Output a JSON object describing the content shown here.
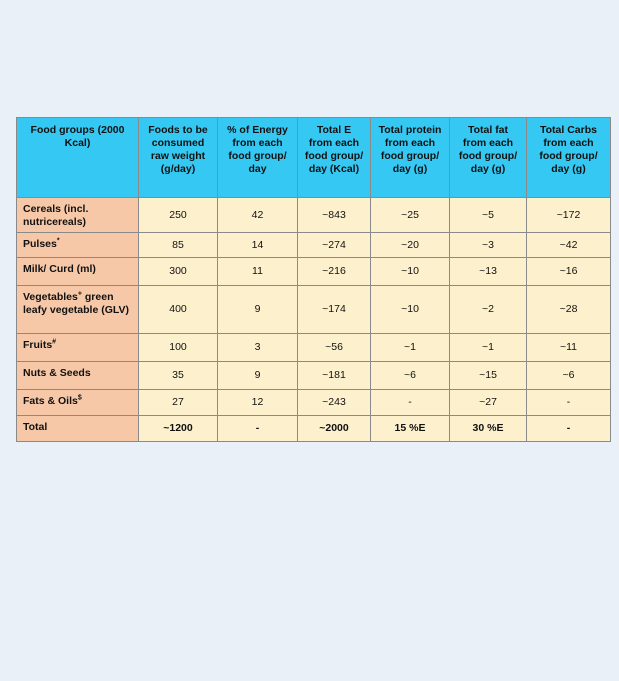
{
  "table": {
    "header": [
      "Food groups (2000 Kcal)",
      "Foods to be consumed raw weight (g/day)",
      "% of Energy from each food group/ day",
      "Total E from each food group/ day (Kcal)",
      "Total protein from each food group/ day (g)",
      "Total fat from each food group/ day (g)",
      "Total Carbs from each food group/ day (g)"
    ],
    "rows": [
      [
        {
          "text": "Cereals (incl. nutricereals)"
        },
        "250",
        "42",
        "~843",
        "~25",
        "~5",
        "~172"
      ],
      [
        {
          "text": "Pulses",
          "sup": "*"
        },
        "85",
        "14",
        "~274",
        "~20",
        "~3",
        "~42"
      ],
      [
        {
          "text": "Milk/ Curd (ml)"
        },
        "300",
        "11",
        "~216",
        "~10",
        "~13",
        "~16"
      ],
      [
        {
          "text": "Vegetables",
          "sup": "+",
          "rest": " green leafy vegetable (GLV)"
        },
        "400",
        "9",
        "~174",
        "~10",
        "~2",
        "~28"
      ],
      [
        {
          "text": "Fruits",
          "sup": "#"
        },
        "100",
        "3",
        "~56",
        "~1",
        "~1",
        "~11"
      ],
      [
        {
          "text": "Nuts & Seeds"
        },
        "35",
        "9",
        "~181",
        "~6",
        "~15",
        "~6"
      ],
      [
        {
          "text": "Fats & Oils",
          "sup": "$"
        },
        "27",
        "12",
        "~243",
        "-",
        "~27",
        "-"
      ],
      [
        {
          "text": "Total"
        },
        "~1200",
        "-",
        "~2000",
        "15 %E",
        "30 %E",
        "-"
      ]
    ]
  }
}
